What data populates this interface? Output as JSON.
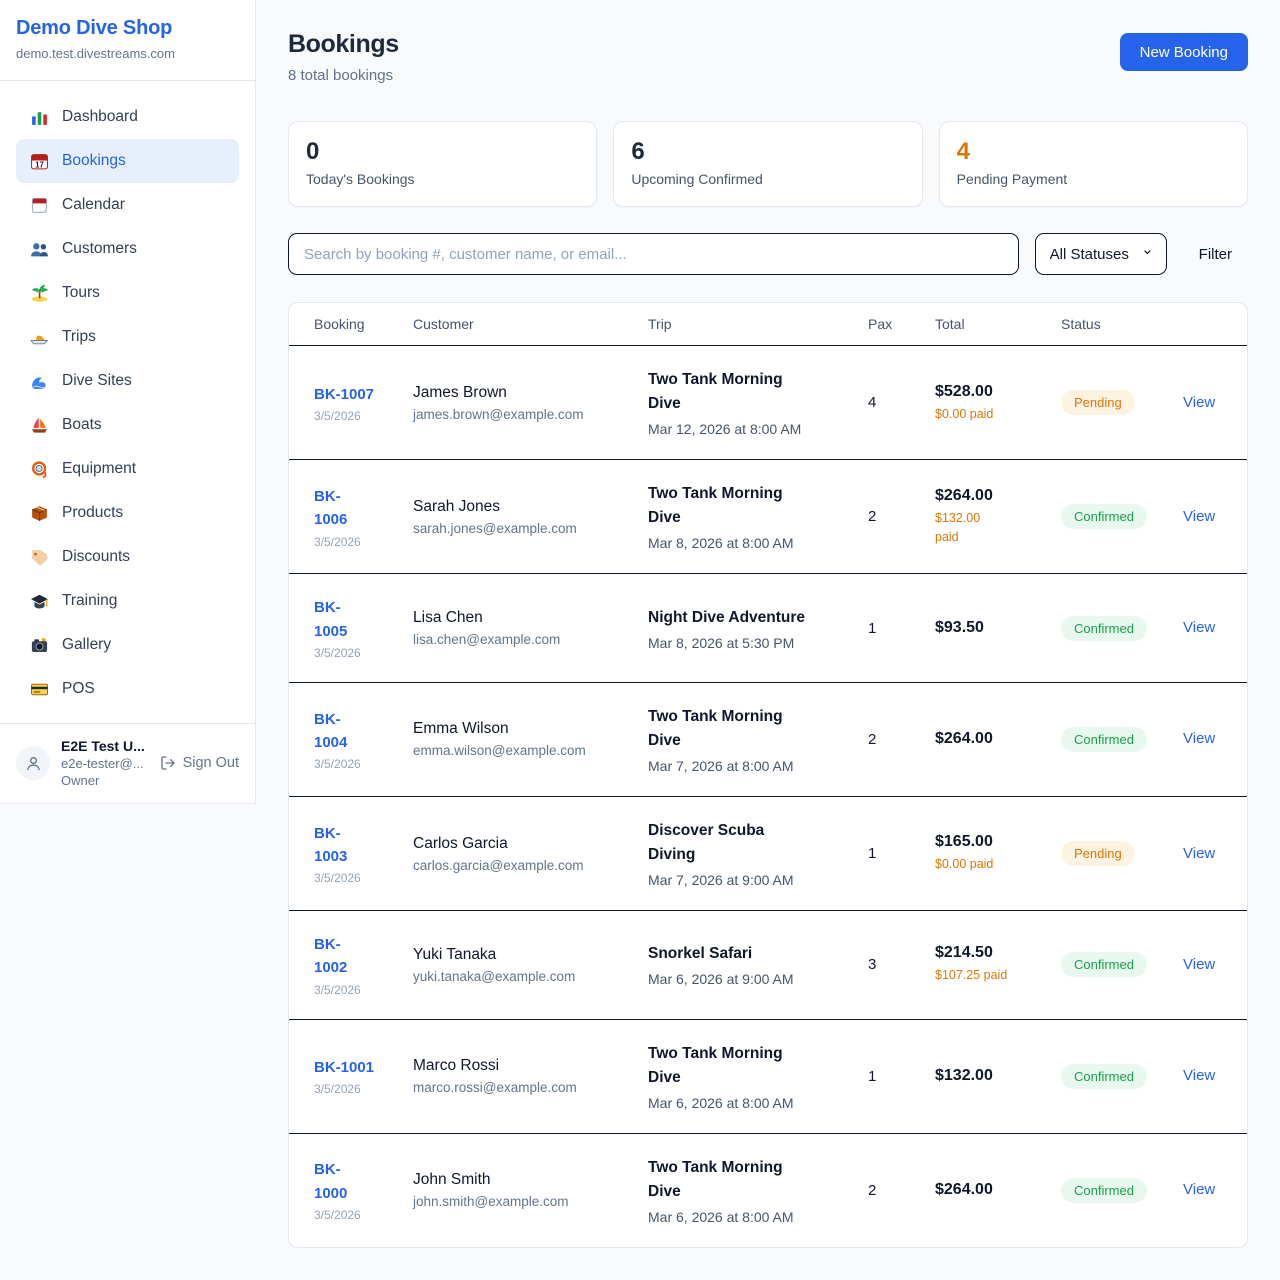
{
  "app": {
    "name": "Demo Dive Shop",
    "domain": "demo.test.divestreams.com"
  },
  "sidebar": {
    "items": [
      {
        "icon": "bar-chart-icon",
        "label": "Dashboard",
        "active": false
      },
      {
        "icon": "calendar-icon",
        "label": "Bookings",
        "active": true
      },
      {
        "icon": "notepad-calendar-icon",
        "label": "Calendar",
        "active": false
      },
      {
        "icon": "people-icon",
        "label": "Customers",
        "active": false
      },
      {
        "icon": "island-icon",
        "label": "Tours",
        "active": false
      },
      {
        "icon": "speedboat-icon",
        "label": "Trips",
        "active": false
      },
      {
        "icon": "wave-icon",
        "label": "Dive Sites",
        "active": false
      },
      {
        "icon": "sailboat-icon",
        "label": "Boats",
        "active": false
      },
      {
        "icon": "diving-mask-icon",
        "label": "Equipment",
        "active": false
      },
      {
        "icon": "package-icon",
        "label": "Products",
        "active": false
      },
      {
        "icon": "tag-icon",
        "label": "Discounts",
        "active": false
      },
      {
        "icon": "graduation-cap-icon",
        "label": "Training",
        "active": false
      },
      {
        "icon": "camera-icon",
        "label": "Gallery",
        "active": false
      },
      {
        "icon": "credit-card-icon",
        "label": "POS",
        "active": false
      }
    ],
    "user": {
      "name": "E2E Test U...",
      "email": "e2e-tester@...",
      "role": "Owner",
      "sign_out_label": "Sign Out"
    }
  },
  "header": {
    "title": "Bookings",
    "subtitle": "8 total bookings",
    "new_booking_label": "New Booking"
  },
  "stats": [
    {
      "value": "0",
      "label": "Today's Bookings",
      "value_color": "#1e293b"
    },
    {
      "value": "6",
      "label": "Upcoming Confirmed",
      "value_color": "#1e293b"
    },
    {
      "value": "4",
      "label": "Pending Payment",
      "value_color": "#d97706"
    }
  ],
  "filters": {
    "search_placeholder": "Search by booking #, customer name, or email...",
    "status_selected": "All Statuses",
    "filter_label": "Filter"
  },
  "table": {
    "columns": [
      "Booking",
      "Customer",
      "Trip",
      "Pax",
      "Total",
      "Status"
    ],
    "view_label": "View",
    "statuses": {
      "Pending": {
        "text_color": "#d97706",
        "bg_color": "#fdf3e1"
      },
      "Confirmed": {
        "text_color": "#16a34a",
        "bg_color": "#e8f8ef"
      }
    },
    "rows": [
      {
        "id": "BK-1007",
        "id_lines": [
          "BK-1007"
        ],
        "date": "3/5/2026",
        "customer_name": "James Brown",
        "customer_email": "james.brown@example.com",
        "trip_name": "Two Tank Morning Dive",
        "trip_lines": [
          "Two Tank Morning",
          "Dive"
        ],
        "trip_datetime": "Mar 12, 2026 at 8:00 AM",
        "pax": "4",
        "total": "$528.00",
        "paid": "$0.00 paid",
        "paid_lines": [
          "$0.00 paid"
        ],
        "status": "Pending"
      },
      {
        "id": "BK-1006",
        "id_lines": [
          "BK-",
          "1006"
        ],
        "date": "3/5/2026",
        "customer_name": "Sarah Jones",
        "customer_email": "sarah.jones@example.com",
        "trip_name": "Two Tank Morning Dive",
        "trip_lines": [
          "Two Tank Morning",
          "Dive"
        ],
        "trip_datetime": "Mar 8, 2026 at 8:00 AM",
        "pax": "2",
        "total": "$264.00",
        "paid": "$132.00 paid",
        "paid_lines": [
          "$132.00",
          "paid"
        ],
        "status": "Confirmed"
      },
      {
        "id": "BK-1005",
        "id_lines": [
          "BK-",
          "1005"
        ],
        "date": "3/5/2026",
        "customer_name": "Lisa Chen",
        "customer_email": "lisa.chen@example.com",
        "trip_name": "Night Dive Adventure",
        "trip_lines": [
          "Night Dive Adventure"
        ],
        "trip_datetime": "Mar 8, 2026 at 5:30 PM",
        "pax": "1",
        "total": "$93.50",
        "paid": "",
        "paid_lines": [],
        "status": "Confirmed"
      },
      {
        "id": "BK-1004",
        "id_lines": [
          "BK-",
          "1004"
        ],
        "date": "3/5/2026",
        "customer_name": "Emma Wilson",
        "customer_email": "emma.wilson@example.com",
        "trip_name": "Two Tank Morning Dive",
        "trip_lines": [
          "Two Tank Morning",
          "Dive"
        ],
        "trip_datetime": "Mar 7, 2026 at 8:00 AM",
        "pax": "2",
        "total": "$264.00",
        "paid": "",
        "paid_lines": [],
        "status": "Confirmed"
      },
      {
        "id": "BK-1003",
        "id_lines": [
          "BK-",
          "1003"
        ],
        "date": "3/5/2026",
        "customer_name": "Carlos Garcia",
        "customer_email": "carlos.garcia@example.com",
        "trip_name": "Discover Scuba Diving",
        "trip_lines": [
          "Discover Scuba",
          "Diving"
        ],
        "trip_datetime": "Mar 7, 2026 at 9:00 AM",
        "pax": "1",
        "total": "$165.00",
        "paid": "$0.00 paid",
        "paid_lines": [
          "$0.00 paid"
        ],
        "status": "Pending"
      },
      {
        "id": "BK-1002",
        "id_lines": [
          "BK-",
          "1002"
        ],
        "date": "3/5/2026",
        "customer_name": "Yuki Tanaka",
        "customer_email": "yuki.tanaka@example.com",
        "trip_name": "Snorkel Safari",
        "trip_lines": [
          "Snorkel Safari"
        ],
        "trip_datetime": "Mar 6, 2026 at 9:00 AM",
        "pax": "3",
        "total": "$214.50",
        "paid": "$107.25 paid",
        "paid_lines": [
          "$107.25 paid"
        ],
        "status": "Confirmed"
      },
      {
        "id": "BK-1001",
        "id_lines": [
          "BK-1001"
        ],
        "date": "3/5/2026",
        "customer_name": "Marco Rossi",
        "customer_email": "marco.rossi@example.com",
        "trip_name": "Two Tank Morning Dive",
        "trip_lines": [
          "Two Tank Morning",
          "Dive"
        ],
        "trip_datetime": "Mar 6, 2026 at 8:00 AM",
        "pax": "1",
        "total": "$132.00",
        "paid": "",
        "paid_lines": [],
        "status": "Confirmed"
      },
      {
        "id": "BK-1000",
        "id_lines": [
          "BK-",
          "1000"
        ],
        "date": "3/5/2026",
        "customer_name": "John Smith",
        "customer_email": "john.smith@example.com",
        "trip_name": "Two Tank Morning Dive",
        "trip_lines": [
          "Two Tank Morning",
          "Dive"
        ],
        "trip_datetime": "Mar 6, 2026 at 8:00 AM",
        "pax": "2",
        "total": "$264.00",
        "paid": "",
        "paid_lines": [],
        "status": "Confirmed"
      }
    ]
  },
  "colors": {
    "accent_blue": "#2563eb",
    "pending_orange": "#d97706",
    "confirmed_green": "#16a34a",
    "page_bg": "#f8fafc",
    "card_border": "#e2e8f0",
    "row_divider": "#0f172a"
  }
}
